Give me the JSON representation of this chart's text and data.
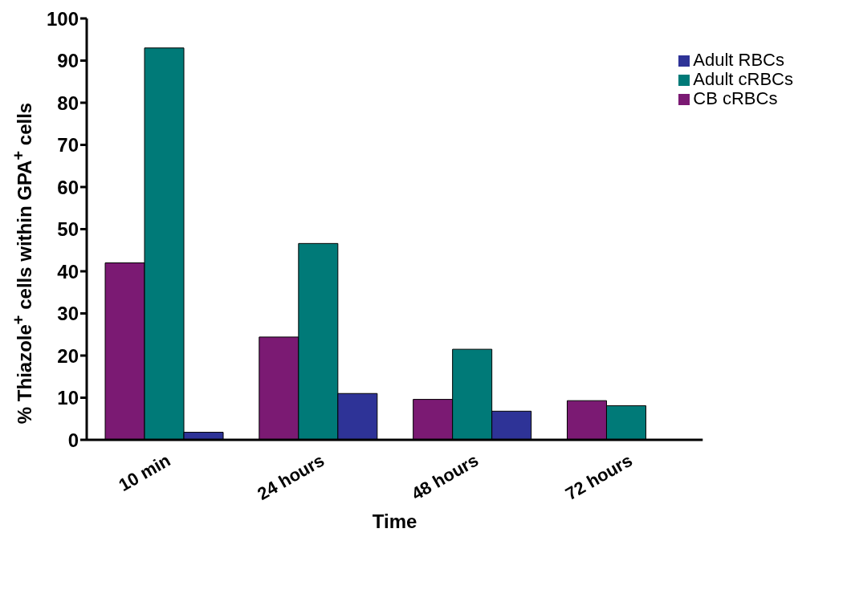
{
  "chart_data": {
    "type": "bar",
    "xlabel": "Time",
    "ylabel": "% Thiazole$^{+}$ cells within GPA$^{+}$ cells",
    "categories": [
      "10 min",
      "24 hours",
      "48 hours",
      "72 hours"
    ],
    "series": [
      {
        "name": "CB cRBCs",
        "color": "#7b1a73",
        "values": [
          42,
          24.4,
          9.6,
          9.3
        ]
      },
      {
        "name": "Adult cRBCs",
        "color": "#007a78",
        "values": [
          93,
          46.6,
          21.5,
          8.1
        ]
      },
      {
        "name": "Adult RBCs",
        "color": "#2e3397",
        "values": [
          1.8,
          11,
          6.8,
          null
        ]
      }
    ],
    "ylim": [
      0,
      100
    ],
    "yticks": [
      0,
      10,
      20,
      30,
      40,
      50,
      60,
      70,
      80,
      90,
      100
    ],
    "grid": false,
    "legend": "top right"
  }
}
